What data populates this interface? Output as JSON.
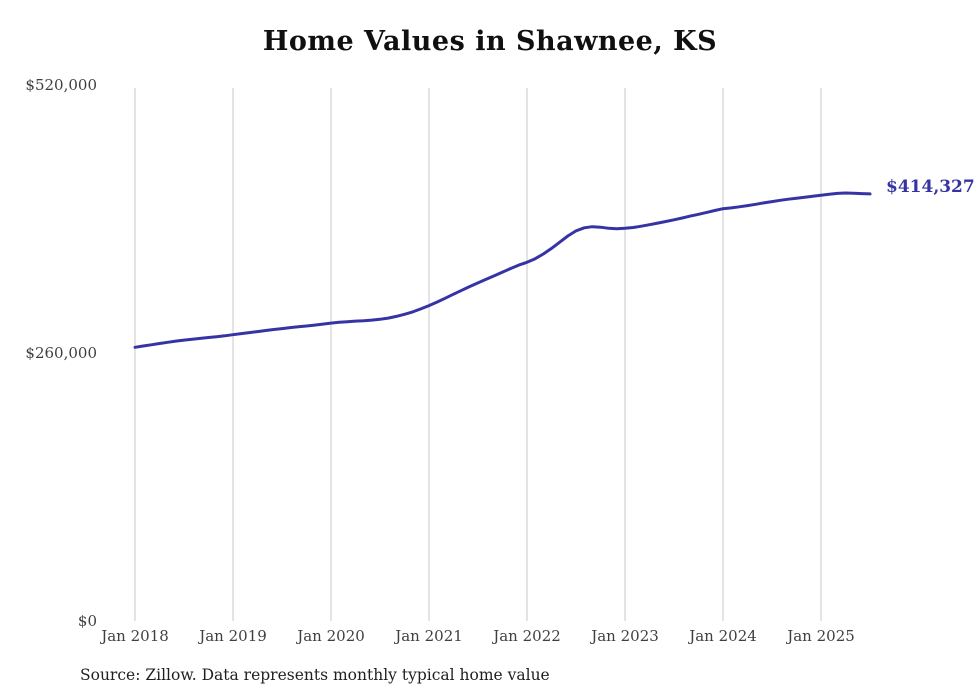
{
  "chart_data": {
    "type": "line",
    "title": "Home Values in Shawnee, KS",
    "source_note": "Source: Zillow. Data represents monthly typical home value",
    "end_label": "$414,327",
    "current_value": 414327,
    "line_color": "#3634a4",
    "grid_color": "#c9c9c9",
    "ylim": [
      0,
      520000
    ],
    "grid": "vertical-only",
    "legend": "none",
    "y_ticks": [
      {
        "label": "$520,000",
        "value": 520000
      },
      {
        "label": "$260,000",
        "value": 260000
      },
      {
        "label": "$0",
        "value": 0
      }
    ],
    "x_ticks": [
      {
        "label": "Jan 2018",
        "month_index": 0
      },
      {
        "label": "Jan 2019",
        "month_index": 12
      },
      {
        "label": "Jan 2020",
        "month_index": 24
      },
      {
        "label": "Jan 2021",
        "month_index": 36
      },
      {
        "label": "Jan 2022",
        "month_index": 48
      },
      {
        "label": "Jan 2023",
        "month_index": 60
      },
      {
        "label": "Jan 2024",
        "month_index": 72
      },
      {
        "label": "Jan 2025",
        "month_index": 84
      }
    ],
    "x_start": "2018-01",
    "x_end": "2025-07",
    "series": [
      {
        "name": "Monthly typical home value",
        "values": [
          265500,
          266800,
          268000,
          269200,
          270400,
          271500,
          272500,
          273400,
          274200,
          275000,
          275800,
          276700,
          277800,
          278800,
          279800,
          280800,
          281800,
          282800,
          283700,
          284600,
          285400,
          286200,
          287100,
          288000,
          289000,
          289800,
          290400,
          290900,
          291300,
          291900,
          292700,
          293900,
          295500,
          297500,
          299900,
          302800,
          306000,
          309500,
          313200,
          317000,
          320800,
          324500,
          328000,
          331500,
          335000,
          338500,
          342000,
          345300,
          348000,
          351500,
          356000,
          361500,
          367500,
          373500,
          378500,
          381500,
          382500,
          382000,
          381000,
          380500,
          381000,
          381800,
          383000,
          384500,
          386000,
          387600,
          389200,
          391000,
          392800,
          394600,
          396400,
          398200,
          400000,
          400800,
          401800,
          403000,
          404300,
          405600,
          406900,
          408100,
          409200,
          410200,
          411100,
          412000,
          413000,
          414000,
          414800,
          415200,
          415000,
          414600,
          414327
        ]
      }
    ]
  }
}
